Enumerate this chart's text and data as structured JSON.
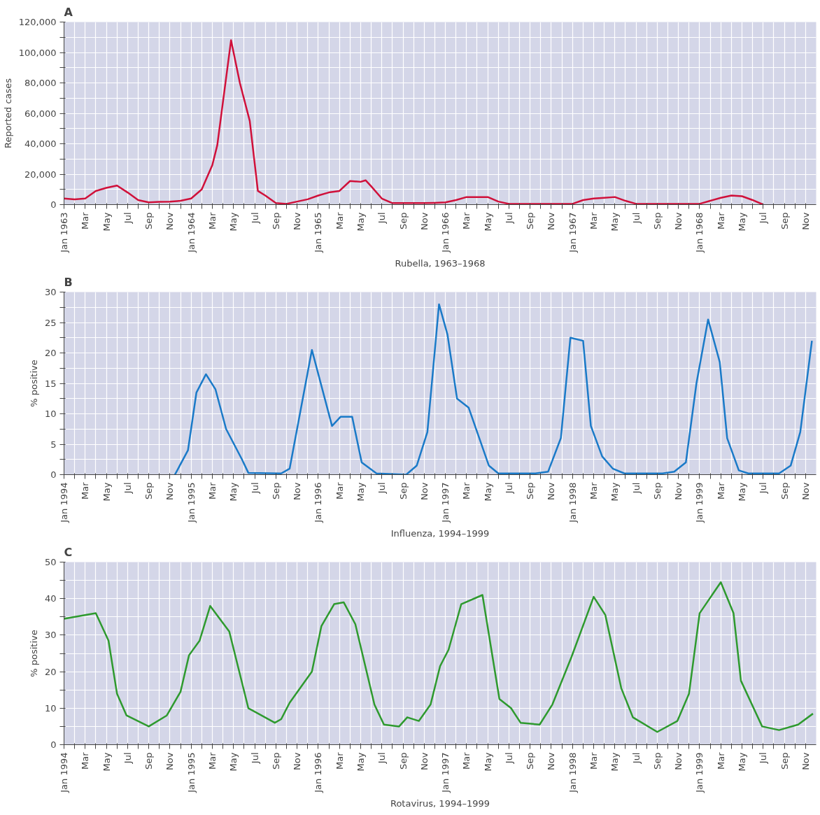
{
  "chart_data": [
    {
      "type": "line",
      "title": "A",
      "xlabel": "Rubella, 1963–1968",
      "ylabel": "Reported cases",
      "grid": true,
      "xlim": [
        "1963-01",
        "1968-12"
      ],
      "xticks": [
        {
          "value": "1963-01",
          "label": "Jan 1963"
        },
        {
          "value": "1963-02",
          "label": null
        },
        {
          "value": "1963-03",
          "label": "Mar"
        },
        {
          "value": "1963-04",
          "label": null
        },
        {
          "value": "1963-05",
          "label": "May"
        },
        {
          "value": "1963-06",
          "label": null
        },
        {
          "value": "1963-07",
          "label": "Jul"
        },
        {
          "value": "1963-08",
          "label": null
        },
        {
          "value": "1963-09",
          "label": "Sep"
        },
        {
          "value": "1963-10",
          "label": null
        },
        {
          "value": "1963-11",
          "label": "Nov"
        },
        {
          "value": "1963-12",
          "label": null
        },
        {
          "value": "1964-01",
          "label": "Jan 1964"
        },
        {
          "value": "1964-02",
          "label": null
        },
        {
          "value": "1964-03",
          "label": "Mar"
        },
        {
          "value": "1964-04",
          "label": null
        },
        {
          "value": "1964-05",
          "label": "May"
        },
        {
          "value": "1964-06",
          "label": null
        },
        {
          "value": "1964-07",
          "label": "Jul"
        },
        {
          "value": "1964-08",
          "label": null
        },
        {
          "value": "1964-09",
          "label": "Sep"
        },
        {
          "value": "1964-10",
          "label": null
        },
        {
          "value": "1964-11",
          "label": "Nov"
        },
        {
          "value": "1964-12",
          "label": null
        },
        {
          "value": "1965-01",
          "label": "Jan 1965"
        },
        {
          "value": "1965-02",
          "label": null
        },
        {
          "value": "1965-03",
          "label": "Mar"
        },
        {
          "value": "1965-04",
          "label": null
        },
        {
          "value": "1965-05",
          "label": "May"
        },
        {
          "value": "1965-06",
          "label": null
        },
        {
          "value": "1965-07",
          "label": "Jul"
        },
        {
          "value": "1965-08",
          "label": null
        },
        {
          "value": "1965-09",
          "label": "Sep"
        },
        {
          "value": "1965-10",
          "label": null
        },
        {
          "value": "1965-11",
          "label": "Nov"
        },
        {
          "value": "1965-12",
          "label": null
        },
        {
          "value": "1966-01",
          "label": "Jan 1966"
        },
        {
          "value": "1966-02",
          "label": null
        },
        {
          "value": "1966-03",
          "label": "Mar"
        },
        {
          "value": "1966-04",
          "label": null
        },
        {
          "value": "1966-05",
          "label": "May"
        },
        {
          "value": "1966-06",
          "label": null
        },
        {
          "value": "1966-07",
          "label": "Jul"
        },
        {
          "value": "1966-08",
          "label": null
        },
        {
          "value": "1966-09",
          "label": "Sep"
        },
        {
          "value": "1966-10",
          "label": null
        },
        {
          "value": "1966-11",
          "label": "Nov"
        },
        {
          "value": "1966-12",
          "label": null
        },
        {
          "value": "1967-01",
          "label": "Jan 1967"
        },
        {
          "value": "1967-02",
          "label": null
        },
        {
          "value": "1967-03",
          "label": "Mar"
        },
        {
          "value": "1967-04",
          "label": null
        },
        {
          "value": "1967-05",
          "label": "May"
        },
        {
          "value": "1967-06",
          "label": null
        },
        {
          "value": "1967-07",
          "label": "Jul"
        },
        {
          "value": "1967-08",
          "label": null
        },
        {
          "value": "1967-09",
          "label": "Sep"
        },
        {
          "value": "1967-10",
          "label": null
        },
        {
          "value": "1967-11",
          "label": "Nov"
        },
        {
          "value": "1967-12",
          "label": null
        },
        {
          "value": "1968-01",
          "label": "Jan 1968"
        },
        {
          "value": "1968-02",
          "label": null
        },
        {
          "value": "1968-03",
          "label": "Mar"
        },
        {
          "value": "1968-04",
          "label": null
        },
        {
          "value": "1968-05",
          "label": "May"
        },
        {
          "value": "1968-06",
          "label": null
        },
        {
          "value": "1968-07",
          "label": "Jul"
        },
        {
          "value": "1968-08",
          "label": null
        },
        {
          "value": "1968-09",
          "label": "Sep"
        },
        {
          "value": "1968-10",
          "label": null
        },
        {
          "value": "1968-11",
          "label": "Nov"
        }
      ],
      "ylim": [
        0,
        120000
      ],
      "yticks": [
        0,
        {
          "value": 10000,
          "label": null
        },
        {
          "value": 20000,
          "label": "20,000"
        },
        {
          "value": 30000,
          "label": null
        },
        {
          "value": 40000,
          "label": "40,000"
        },
        {
          "value": 50000,
          "label": null
        },
        {
          "value": 60000,
          "label": "60,000"
        },
        {
          "value": 70000,
          "label": null
        },
        {
          "value": 80000,
          "label": "80,000"
        },
        {
          "value": 90000,
          "label": null
        },
        {
          "value": 100000,
          "label": "100,000"
        },
        {
          "value": 110000,
          "label": null
        },
        {
          "value": 120000,
          "label": "120,000"
        }
      ],
      "series": [
        {
          "color": "#d0103a",
          "x": [
            "1963-01",
            "1963-02",
            "1963-03",
            "1963-04",
            "1963-05",
            "1963-06",
            "1963-07",
            "1963-08",
            "1963-09",
            "1963-10",
            "1963-11",
            "1963-12",
            "1964-01",
            "1964-02",
            "1964-03",
            "1964-03-15",
            "1964-04-24",
            "1964-05-19",
            "1964-06-17",
            "1964-07-10",
            "1964-08",
            "1964-09",
            "1964-10",
            "1964-11",
            "1964-12",
            "1965-01",
            "1965-02",
            "1965-03",
            "1965-04",
            "1965-05",
            "1965-05-15",
            "1965-06",
            "1965-07",
            "1965-08",
            "1965-09",
            "1965-10",
            "1965-11",
            "1965-12",
            "1966-01",
            "1966-02",
            "1966-03",
            "1966-04",
            "1966-05",
            "1966-06",
            "1966-07",
            "1966-08",
            "1966-09",
            "1966-10",
            "1966-11",
            "1966-12",
            "1967-01",
            "1967-02",
            "1967-03",
            "1967-04",
            "1967-05",
            "1967-06",
            "1967-07",
            "1967-08",
            "1967-09",
            "1967-10",
            "1967-11",
            "1967-12",
            "1968-01",
            "1968-02",
            "1968-03",
            "1968-04",
            "1968-05",
            "1968-06",
            "1968-07"
          ],
          "values": [
            4000,
            3500,
            4000,
            9000,
            11000,
            12500,
            8000,
            3000,
            1500,
            1800,
            2000,
            2500,
            4000,
            10000,
            26000,
            39000,
            108000,
            80000,
            55000,
            9000,
            6000,
            1000,
            500,
            2000,
            3500,
            6000,
            8000,
            9000,
            15500,
            15000,
            16000,
            12000,
            4000,
            1000,
            1000,
            1000,
            1000,
            1200,
            1500,
            3000,
            5000,
            5000,
            5000,
            2000,
            500,
            500,
            500,
            500,
            500,
            500,
            500,
            3000,
            4000,
            4500,
            5000,
            2500,
            500,
            500,
            500,
            500,
            500,
            500,
            500,
            2500,
            4500,
            6000,
            5500,
            3000,
            0
          ]
        }
      ]
    },
    {
      "type": "line",
      "title": "B",
      "xlabel": "Influenza, 1994–1999",
      "ylabel": "% positive",
      "grid": true,
      "xlim": [
        "1994-01",
        "1999-12"
      ],
      "xticks": [
        {
          "value": "1994-01",
          "label": "Jan 1994"
        },
        {
          "value": "1994-02",
          "label": null
        },
        {
          "value": "1994-03",
          "label": "Mar"
        },
        {
          "value": "1994-04",
          "label": null
        },
        {
          "value": "1994-05",
          "label": "May"
        },
        {
          "value": "1994-06",
          "label": null
        },
        {
          "value": "1994-07",
          "label": "Jul"
        },
        {
          "value": "1994-08",
          "label": null
        },
        {
          "value": "1994-09",
          "label": "Sep"
        },
        {
          "value": "1994-10",
          "label": null
        },
        {
          "value": "1994-11",
          "label": "Nov"
        },
        {
          "value": "1994-12",
          "label": null
        },
        {
          "value": "1995-01",
          "label": "Jan 1995"
        },
        {
          "value": "1995-02",
          "label": null
        },
        {
          "value": "1995-03",
          "label": "Mar"
        },
        {
          "value": "1995-04",
          "label": null
        },
        {
          "value": "1995-05",
          "label": "May"
        },
        {
          "value": "1995-06",
          "label": null
        },
        {
          "value": "1995-07",
          "label": "Jul"
        },
        {
          "value": "1995-08",
          "label": null
        },
        {
          "value": "1995-09",
          "label": "Sep"
        },
        {
          "value": "1995-10",
          "label": null
        },
        {
          "value": "1995-11",
          "label": "Nov"
        },
        {
          "value": "1995-12",
          "label": null
        },
        {
          "value": "1996-01",
          "label": "Jan 1996"
        },
        {
          "value": "1996-02",
          "label": null
        },
        {
          "value": "1996-03",
          "label": "Mar"
        },
        {
          "value": "1996-04",
          "label": null
        },
        {
          "value": "1996-05",
          "label": "May"
        },
        {
          "value": "1996-06",
          "label": null
        },
        {
          "value": "1996-07",
          "label": "Jul"
        },
        {
          "value": "1996-08",
          "label": null
        },
        {
          "value": "1996-09",
          "label": "Sep"
        },
        {
          "value": "1996-10",
          "label": null
        },
        {
          "value": "1996-11",
          "label": "Nov"
        },
        {
          "value": "1996-12",
          "label": null
        },
        {
          "value": "1997-01",
          "label": "Jan 1997"
        },
        {
          "value": "1997-02",
          "label": null
        },
        {
          "value": "1997-03",
          "label": "Mar"
        },
        {
          "value": "1997-04",
          "label": null
        },
        {
          "value": "1997-05",
          "label": "May"
        },
        {
          "value": "1997-06",
          "label": null
        },
        {
          "value": "1997-07",
          "label": "Jul"
        },
        {
          "value": "1997-08",
          "label": null
        },
        {
          "value": "1997-09",
          "label": "Sep"
        },
        {
          "value": "1997-10",
          "label": null
        },
        {
          "value": "1997-11",
          "label": "Nov"
        },
        {
          "value": "1997-12",
          "label": null
        },
        {
          "value": "1998-01",
          "label": "Jan 1998"
        },
        {
          "value": "1998-02",
          "label": null
        },
        {
          "value": "1998-03",
          "label": "Mar"
        },
        {
          "value": "1998-04",
          "label": null
        },
        {
          "value": "1998-05",
          "label": "May"
        },
        {
          "value": "1998-06",
          "label": null
        },
        {
          "value": "1998-07",
          "label": "Jul"
        },
        {
          "value": "1998-08",
          "label": null
        },
        {
          "value": "1998-09",
          "label": "Sep"
        },
        {
          "value": "1998-10",
          "label": null
        },
        {
          "value": "1998-11",
          "label": "Nov"
        },
        {
          "value": "1998-12",
          "label": null
        },
        {
          "value": "1999-01",
          "label": "Jan 1999"
        },
        {
          "value": "1999-02",
          "label": null
        },
        {
          "value": "1999-03",
          "label": "Mar"
        },
        {
          "value": "1999-04",
          "label": null
        },
        {
          "value": "1999-05",
          "label": "May"
        },
        {
          "value": "1999-06",
          "label": null
        },
        {
          "value": "1999-07",
          "label": "Jul"
        },
        {
          "value": "1999-08",
          "label": null
        },
        {
          "value": "1999-09",
          "label": "Sep"
        },
        {
          "value": "1999-10",
          "label": null
        },
        {
          "value": "1999-11",
          "label": "Nov"
        }
      ],
      "ylim": [
        0,
        30
      ],
      "yticks": [
        0,
        {
          "value": 2.5,
          "label": null
        },
        5,
        {
          "value": 7.5,
          "label": null
        },
        10,
        {
          "value": 12.5,
          "label": null
        },
        15,
        {
          "value": 17.5,
          "label": null
        },
        20,
        {
          "value": 22.5,
          "label": null
        },
        25,
        {
          "value": 27.5,
          "label": null
        },
        30
      ],
      "series": [
        {
          "color": "#1a7ac8",
          "x": [
            "1994-11-15",
            "1994-12-22",
            "1995-01-16",
            "1995-02-13",
            "1995-03-10",
            "1995-04-10",
            "1995-05-25",
            "1995-06-13",
            "1995-09-16",
            "1995-10-10",
            "1995-12-13",
            "1996-02-10",
            "1996-03-04",
            "1996-04-07",
            "1996-05-04",
            "1996-06-16",
            "1996-09-10",
            "1996-10-10",
            "1996-11-10",
            "1996-12-13",
            "1997-01-07",
            "1997-02-04",
            "1997-03-07",
            "1997-05-04",
            "1997-06-01",
            "1997-09-16",
            "1997-10-22",
            "1997-11-28",
            "1997-12-25",
            "1998-02-01",
            "1998-02-23",
            "1998-03-25",
            "1998-04-25",
            "1998-05-28",
            "1998-09-16",
            "1998-10-19",
            "1998-11-22",
            "1998-12-22",
            "1999-01-25",
            "1999-02-28",
            "1999-03-19",
            "1999-04-22",
            "1999-05-19",
            "1999-08-16",
            "1999-09-19",
            "1999-10-16",
            "1999-11-19"
          ],
          "values": [
            0,
            4,
            13.5,
            16.5,
            14,
            7.5,
            2.5,
            0.3,
            0.2,
            1,
            20.5,
            8,
            9.5,
            9.5,
            2,
            0.2,
            0,
            1.5,
            7,
            28,
            23,
            12.5,
            11,
            1.5,
            0.2,
            0.2,
            0.5,
            6,
            22.5,
            22,
            8,
            3,
            1,
            0.2,
            0.2,
            0.5,
            2,
            15,
            25.5,
            18.5,
            6,
            0.7,
            0.2,
            0.2,
            1.5,
            7,
            22
          ]
        }
      ]
    },
    {
      "type": "line",
      "title": "C",
      "xlabel": "Rotavirus, 1994–1999",
      "ylabel": "% positive",
      "grid": true,
      "xlim": [
        "1994-01",
        "1999-12"
      ],
      "xticks": [
        {
          "value": "1994-01",
          "label": "Jan 1994"
        },
        {
          "value": "1994-02",
          "label": null
        },
        {
          "value": "1994-03",
          "label": "Mar"
        },
        {
          "value": "1994-04",
          "label": null
        },
        {
          "value": "1994-05",
          "label": "May"
        },
        {
          "value": "1994-06",
          "label": null
        },
        {
          "value": "1994-07",
          "label": "Jul"
        },
        {
          "value": "1994-08",
          "label": null
        },
        {
          "value": "1994-09",
          "label": "Sep"
        },
        {
          "value": "1994-10",
          "label": null
        },
        {
          "value": "1994-11",
          "label": "Nov"
        },
        {
          "value": "1994-12",
          "label": null
        },
        {
          "value": "1995-01",
          "label": "Jan 1995"
        },
        {
          "value": "1995-02",
          "label": null
        },
        {
          "value": "1995-03",
          "label": "Mar"
        },
        {
          "value": "1995-04",
          "label": null
        },
        {
          "value": "1995-05",
          "label": "May"
        },
        {
          "value": "1995-06",
          "label": null
        },
        {
          "value": "1995-07",
          "label": "Jul"
        },
        {
          "value": "1995-08",
          "label": null
        },
        {
          "value": "1995-09",
          "label": "Sep"
        },
        {
          "value": "1995-10",
          "label": null
        },
        {
          "value": "1995-11",
          "label": "Nov"
        },
        {
          "value": "1995-12",
          "label": null
        },
        {
          "value": "1996-01",
          "label": "Jan 1996"
        },
        {
          "value": "1996-02",
          "label": null
        },
        {
          "value": "1996-03",
          "label": "Mar"
        },
        {
          "value": "1996-04",
          "label": null
        },
        {
          "value": "1996-05",
          "label": "May"
        },
        {
          "value": "1996-06",
          "label": null
        },
        {
          "value": "1996-07",
          "label": "Jul"
        },
        {
          "value": "1996-08",
          "label": null
        },
        {
          "value": "1996-09",
          "label": "Sep"
        },
        {
          "value": "1996-10",
          "label": null
        },
        {
          "value": "1996-11",
          "label": "Nov"
        },
        {
          "value": "1996-12",
          "label": null
        },
        {
          "value": "1997-01",
          "label": "Jan 1997"
        },
        {
          "value": "1997-02",
          "label": null
        },
        {
          "value": "1997-03",
          "label": "Mar"
        },
        {
          "value": "1997-04",
          "label": null
        },
        {
          "value": "1997-05",
          "label": "May"
        },
        {
          "value": "1997-06",
          "label": null
        },
        {
          "value": "1997-07",
          "label": "Jul"
        },
        {
          "value": "1997-08",
          "label": null
        },
        {
          "value": "1997-09",
          "label": "Sep"
        },
        {
          "value": "1997-10",
          "label": null
        },
        {
          "value": "1997-11",
          "label": "Nov"
        },
        {
          "value": "1997-12",
          "label": null
        },
        {
          "value": "1998-01",
          "label": "Jan 1998"
        },
        {
          "value": "1998-02",
          "label": null
        },
        {
          "value": "1998-03",
          "label": "Mar"
        },
        {
          "value": "1998-04",
          "label": null
        },
        {
          "value": "1998-05",
          "label": "May"
        },
        {
          "value": "1998-06",
          "label": null
        },
        {
          "value": "1998-07",
          "label": "Jul"
        },
        {
          "value": "1998-08",
          "label": null
        },
        {
          "value": "1998-09",
          "label": "Sep"
        },
        {
          "value": "1998-10",
          "label": null
        },
        {
          "value": "1998-11",
          "label": "Nov"
        },
        {
          "value": "1998-12",
          "label": null
        },
        {
          "value": "1999-01",
          "label": "Jan 1999"
        },
        {
          "value": "1999-02",
          "label": null
        },
        {
          "value": "1999-03",
          "label": "Mar"
        },
        {
          "value": "1999-04",
          "label": null
        },
        {
          "value": "1999-05",
          "label": "May"
        },
        {
          "value": "1999-06",
          "label": null
        },
        {
          "value": "1999-07",
          "label": "Jul"
        },
        {
          "value": "1999-08",
          "label": null
        },
        {
          "value": "1999-09",
          "label": "Sep"
        },
        {
          "value": "1999-10",
          "label": null
        },
        {
          "value": "1999-11",
          "label": "Nov"
        }
      ],
      "ylim": [
        0,
        50
      ],
      "yticks": [
        0,
        {
          "value": 5,
          "label": null
        },
        10,
        {
          "value": 15,
          "label": null
        },
        20,
        {
          "value": 25,
          "label": null
        },
        30,
        {
          "value": 35,
          "label": null
        },
        40,
        {
          "value": 45,
          "label": null
        },
        50
      ],
      "series": [
        {
          "color": "#2e9a2e",
          "x": [
            "1994-01",
            "1994-04",
            "1994-05-07",
            "1994-06",
            "1994-06-28",
            "1994-09",
            "1994-10-22",
            "1994-12",
            "1994-12-25",
            "1995-01-25",
            "1995-02-25",
            "1995-04-19",
            "1995-06-13",
            "1995-08-28",
            "1995-09-16",
            "1995-10-10",
            "1995-12-13",
            "1996-01-10",
            "1996-02-16",
            "1996-03-13",
            "1996-04-16",
            "1996-06-10",
            "1996-07-07",
            "1996-08-20",
            "1996-09-13",
            "1996-10-16",
            "1996-11-19",
            "1996-12-16",
            "1997-01-10",
            "1997-02-16",
            "1997-04-16",
            "1997-06-04",
            "1997-07-07",
            "1997-08-04",
            "1997-09-28",
            "1997-11-04",
            "1997-12-28",
            "1998-03",
            "1998-04-04",
            "1998-05-19",
            "1998-06-22",
            "1998-09",
            "1998-10-28",
            "1998-12",
            "1999-01",
            "1999-03",
            "1999-04-07",
            "1999-04-28",
            "1999-06-28",
            "1999-08-16",
            "1999-10-10",
            "1999-11-22"
          ],
          "values": [
            34.5,
            36,
            28.5,
            14,
            8,
            5,
            8,
            14.5,
            24.5,
            28.5,
            38,
            31,
            10,
            6,
            7,
            11.5,
            20,
            32.5,
            38.5,
            39,
            33,
            11,
            5.5,
            5,
            7.5,
            6.5,
            11,
            21.5,
            26,
            38.5,
            41,
            12.5,
            10,
            6,
            5.5,
            11,
            24,
            40.5,
            35.5,
            15.5,
            7.5,
            3.5,
            6.5,
            14,
            36,
            44.5,
            36,
            17.5,
            5,
            4,
            5.5,
            8.5
          ]
        }
      ]
    }
  ]
}
